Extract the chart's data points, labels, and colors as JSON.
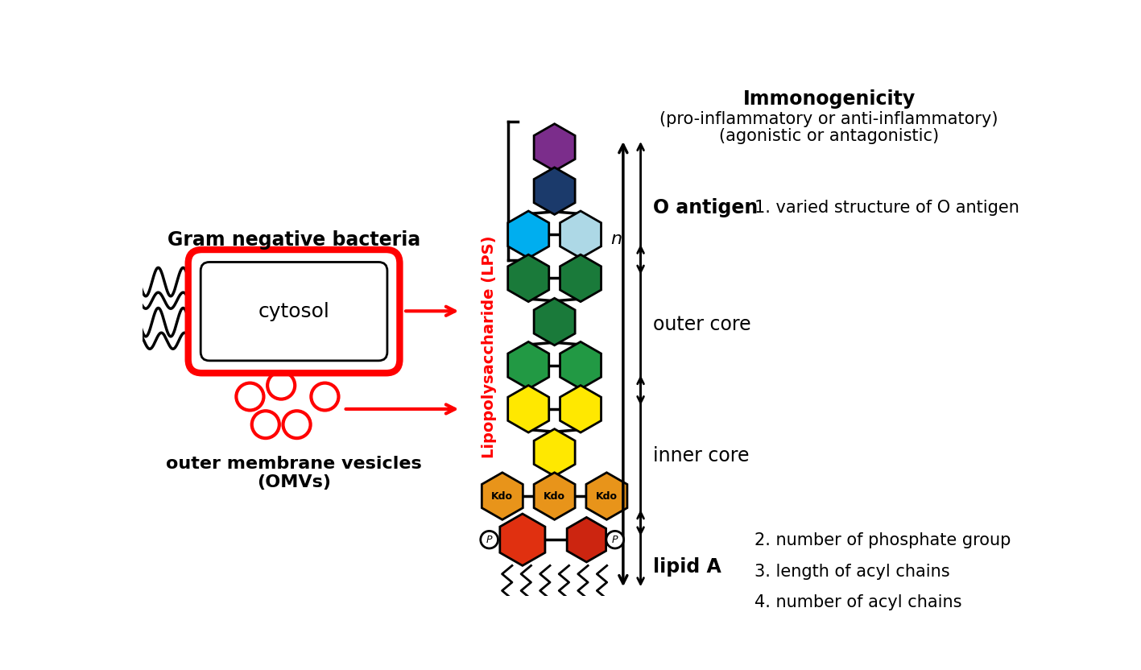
{
  "bg_color": "#ffffff",
  "bacteria_label": "Gram negative bacteria",
  "cytosol_label": "cytosol",
  "omv_label": "outer membrane vesicles\n(OMVs)",
  "lps_label": "Lipopolysaccharide (LPS)",
  "immuno_title": "Immonogenicity",
  "immuno_sub1": "(pro-inflammatory or anti-inflammatory)",
  "immuno_sub2": "(agonistic or antagonistic)",
  "o_antigen_label": "O antigen",
  "outer_core_label": "outer core",
  "inner_core_label": "inner core",
  "lipid_a_label": "lipid A",
  "point1": "1. varied structure of O antigen",
  "point2": "2. number of phosphate group",
  "point3": "3. length of acyl chains",
  "point4": "4. number of acyl chains",
  "red_color": "#FF0000",
  "black": "#000000",
  "purple": "#7B2D8B",
  "dark_navy": "#1B3A6B",
  "cyan": "#00AEEF",
  "light_blue": "#ADD8E6",
  "dark_green": "#1A7A3A",
  "medium_green": "#229944",
  "yellow": "#FFE800",
  "orange_kdo": "#E8941A",
  "red_lipid": "#E03010",
  "red_lipid2": "#CC2510"
}
